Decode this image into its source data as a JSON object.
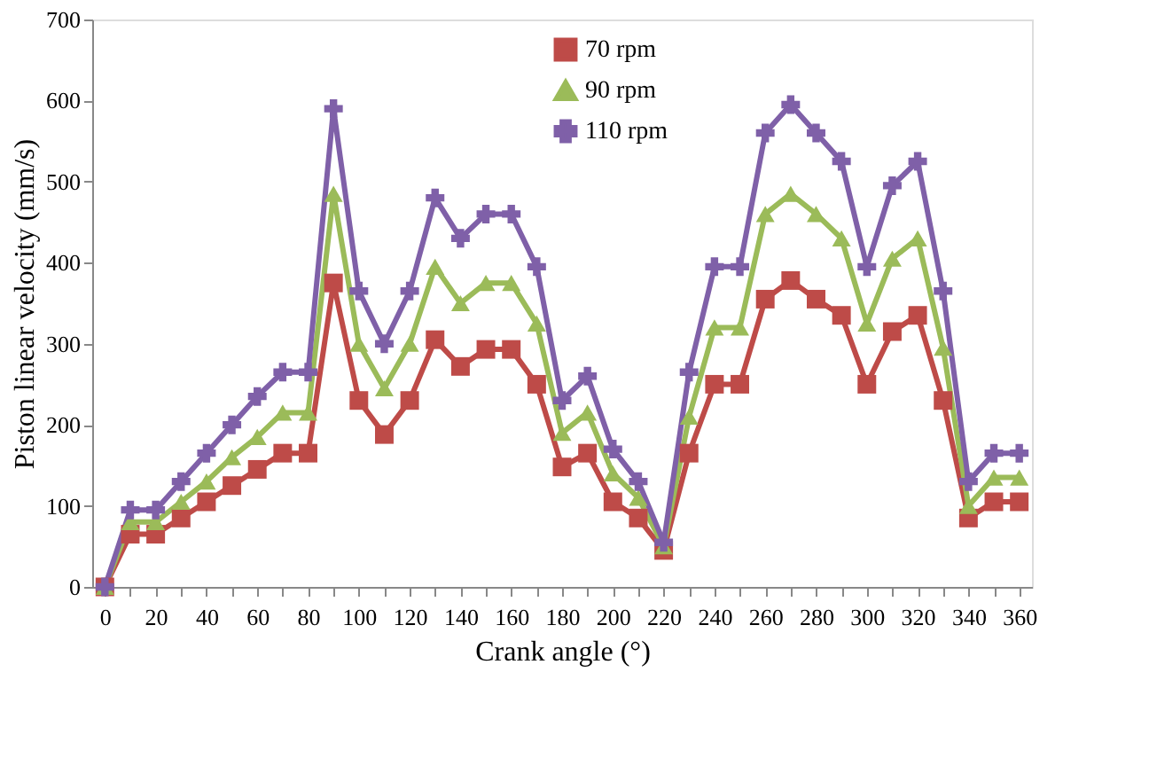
{
  "chart_data": {
    "type": "line",
    "xlabel": "Crank angle (°)",
    "ylabel": "Piston linear velocity (mm/s)",
    "x": [
      0,
      10,
      20,
      30,
      40,
      50,
      60,
      70,
      80,
      90,
      100,
      110,
      120,
      130,
      140,
      150,
      160,
      170,
      180,
      190,
      200,
      210,
      220,
      230,
      240,
      250,
      260,
      270,
      280,
      290,
      300,
      310,
      320,
      330,
      340,
      350,
      360
    ],
    "series": [
      {
        "name": "70 rpm",
        "color": "#be4b48",
        "marker": "square",
        "values": [
          0,
          65,
          65,
          85,
          105,
          125,
          145,
          165,
          165,
          375,
          230,
          188,
          230,
          305,
          272,
          293,
          293,
          250,
          148,
          165,
          105,
          85,
          45,
          165,
          250,
          250,
          355,
          378,
          355,
          335,
          250,
          315,
          335,
          230,
          85,
          105,
          105
        ]
      },
      {
        "name": "90 rpm",
        "color": "#9bbb59",
        "marker": "triangle",
        "values": [
          0,
          80,
          80,
          105,
          130,
          160,
          185,
          215,
          215,
          485,
          300,
          245,
          300,
          395,
          350,
          375,
          375,
          325,
          190,
          215,
          140,
          110,
          50,
          210,
          320,
          320,
          460,
          485,
          460,
          430,
          325,
          405,
          430,
          295,
          100,
          135,
          135
        ]
      },
      {
        "name": "110 rpm",
        "color": "#7f60a8",
        "marker": "cross",
        "values": [
          0,
          95,
          95,
          130,
          165,
          200,
          235,
          265,
          265,
          590,
          365,
          300,
          365,
          480,
          430,
          460,
          460,
          395,
          230,
          260,
          170,
          130,
          55,
          265,
          395,
          395,
          560,
          595,
          560,
          525,
          395,
          495,
          525,
          365,
          130,
          165,
          165
        ]
      }
    ],
    "xlim": [
      -5,
      365
    ],
    "xticks": [
      0,
      {
        "value": 10,
        "label": null
      },
      20,
      {
        "value": 30,
        "label": null
      },
      40,
      {
        "value": 50,
        "label": null
      },
      60,
      {
        "value": 70,
        "label": null
      },
      80,
      {
        "value": 90,
        "label": null
      },
      100,
      {
        "value": 110,
        "label": null
      },
      120,
      {
        "value": 130,
        "label": null
      },
      140,
      {
        "value": 150,
        "label": null
      },
      160,
      {
        "value": 170,
        "label": null
      },
      180,
      {
        "value": 190,
        "label": null
      },
      200,
      {
        "value": 210,
        "label": null
      },
      220,
      {
        "value": 230,
        "label": null
      },
      240,
      {
        "value": 250,
        "label": null
      },
      260,
      {
        "value": 270,
        "label": null
      },
      280,
      {
        "value": 290,
        "label": null
      },
      300,
      {
        "value": 310,
        "label": null
      },
      320,
      {
        "value": 330,
        "label": null
      },
      340,
      {
        "value": 350,
        "label": null
      },
      360
    ],
    "ylim": [
      0,
      700
    ],
    "yticks": [
      0,
      100,
      200,
      300,
      400,
      500,
      600,
      700
    ],
    "grid": false,
    "legend": "top",
    "line_style": "solid"
  }
}
